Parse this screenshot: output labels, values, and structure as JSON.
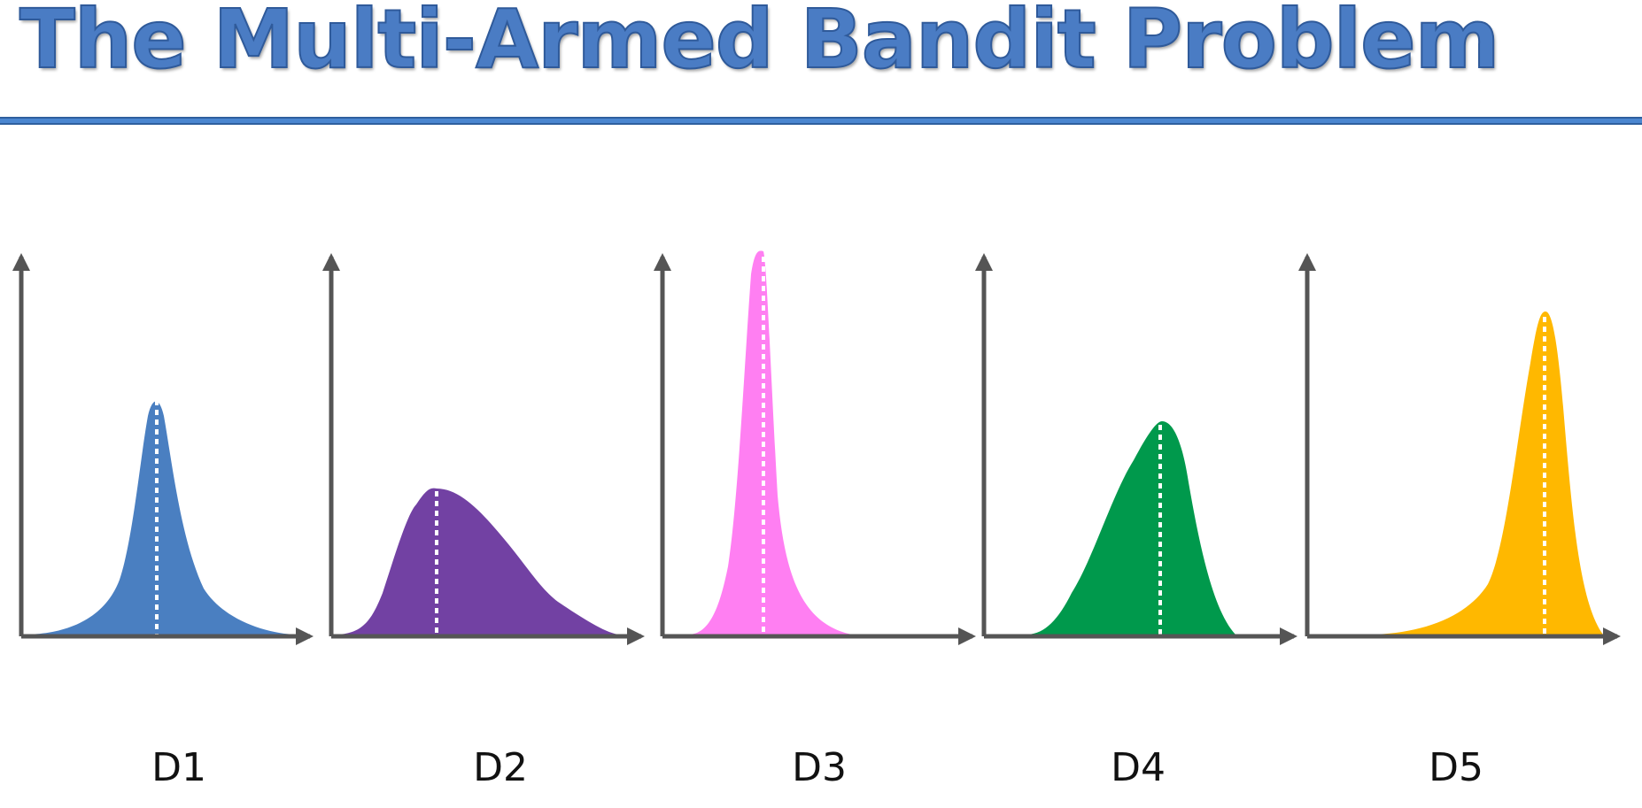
{
  "title": "The Multi-Armed Bandit Problem",
  "colors": {
    "title": "#4a7cc4",
    "title_stroke": "#2f5a9a",
    "rule": "#4a86d0",
    "rule_border": "#2e5f9e",
    "axis": "#555555",
    "mean_line": "#ffffff"
  },
  "distributions": [
    {
      "label": "D1",
      "color": "#4a7fc1"
    },
    {
      "label": "D2",
      "color": "#7241a3"
    },
    {
      "label": "D3",
      "color": "#ff7ff2"
    },
    {
      "label": "D4",
      "color": "#00994c"
    },
    {
      "label": "D5",
      "color": "#ffb800"
    }
  ]
}
